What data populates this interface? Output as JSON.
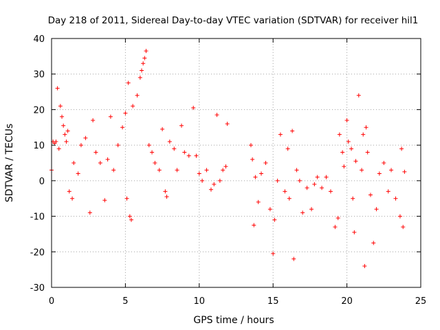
{
  "chart_data": {
    "type": "scatter",
    "title": "Day 218 of 2011, Sidereal Day-to-day VTEC variation (SDTVAR) for receiver hil1",
    "xlabel": "GPS time / hours",
    "ylabel": "SDTVAR / TECUs",
    "xlim": [
      0,
      25
    ],
    "ylim": [
      -30,
      40
    ],
    "xticks": [
      0,
      5,
      10,
      15,
      20,
      25
    ],
    "yticks": [
      -30,
      -20,
      -10,
      0,
      10,
      20,
      30,
      40
    ],
    "xtick_labels": [
      "0",
      "5",
      "10",
      "15",
      "20",
      "25"
    ],
    "ytick_labels": [
      "-30",
      "-20",
      "-10",
      "0",
      "10",
      "20",
      "30",
      "40"
    ],
    "grid": true,
    "marker": "+",
    "color": "#ff0000",
    "series": [
      {
        "name": "hil1",
        "points": [
          [
            0.0,
            3.0
          ],
          [
            0.1,
            11.0
          ],
          [
            0.2,
            10.5
          ],
          [
            0.3,
            11.0
          ],
          [
            0.4,
            26.0
          ],
          [
            0.5,
            9.0
          ],
          [
            0.6,
            21.0
          ],
          [
            0.7,
            18.0
          ],
          [
            0.8,
            15.5
          ],
          [
            0.9,
            13.0
          ],
          [
            1.0,
            11.0
          ],
          [
            1.1,
            14.0
          ],
          [
            1.2,
            -3.0
          ],
          [
            1.4,
            -5.0
          ],
          [
            1.5,
            5.0
          ],
          [
            1.8,
            2.0
          ],
          [
            2.0,
            10.0
          ],
          [
            2.3,
            12.0
          ],
          [
            2.6,
            -9.0
          ],
          [
            2.8,
            17.0
          ],
          [
            3.0,
            8.0
          ],
          [
            3.3,
            5.0
          ],
          [
            3.6,
            -5.5
          ],
          [
            3.8,
            6.0
          ],
          [
            4.0,
            18.0
          ],
          [
            4.2,
            3.0
          ],
          [
            4.5,
            10.0
          ],
          [
            4.8,
            15.0
          ],
          [
            5.0,
            19.0
          ],
          [
            5.1,
            -5.0
          ],
          [
            5.2,
            27.5
          ],
          [
            5.3,
            -10.0
          ],
          [
            5.4,
            -11.0
          ],
          [
            5.5,
            21.0
          ],
          [
            5.8,
            24.0
          ],
          [
            6.0,
            29.0
          ],
          [
            6.1,
            31.0
          ],
          [
            6.2,
            33.0
          ],
          [
            6.3,
            34.5
          ],
          [
            6.4,
            36.5
          ],
          [
            6.6,
            10.0
          ],
          [
            6.8,
            8.0
          ],
          [
            7.0,
            5.0
          ],
          [
            7.3,
            3.0
          ],
          [
            7.5,
            14.5
          ],
          [
            7.7,
            -3.0
          ],
          [
            7.8,
            -4.5
          ],
          [
            8.0,
            11.0
          ],
          [
            8.3,
            9.0
          ],
          [
            8.5,
            3.0
          ],
          [
            8.8,
            15.5
          ],
          [
            9.0,
            8.0
          ],
          [
            9.3,
            7.0
          ],
          [
            9.6,
            20.5
          ],
          [
            9.8,
            7.0
          ],
          [
            10.0,
            2.0
          ],
          [
            10.2,
            0.0
          ],
          [
            10.5,
            3.0
          ],
          [
            10.8,
            -2.5
          ],
          [
            11.0,
            -1.0
          ],
          [
            11.2,
            18.5
          ],
          [
            11.4,
            0.0
          ],
          [
            11.6,
            3.0
          ],
          [
            11.8,
            4.0
          ],
          [
            11.9,
            16.0
          ],
          [
            13.5,
            10.0
          ],
          [
            13.6,
            6.0
          ],
          [
            13.7,
            -12.5
          ],
          [
            13.8,
            1.0
          ],
          [
            14.0,
            -6.0
          ],
          [
            14.2,
            2.0
          ],
          [
            14.5,
            5.0
          ],
          [
            14.8,
            -8.0
          ],
          [
            15.0,
            -20.5
          ],
          [
            15.1,
            -11.0
          ],
          [
            15.3,
            0.0
          ],
          [
            15.5,
            13.0
          ],
          [
            15.8,
            -3.0
          ],
          [
            16.0,
            9.0
          ],
          [
            16.1,
            -5.0
          ],
          [
            16.3,
            14.0
          ],
          [
            16.4,
            -22.0
          ],
          [
            16.6,
            3.0
          ],
          [
            16.8,
            0.0
          ],
          [
            17.0,
            -9.0
          ],
          [
            17.3,
            -2.0
          ],
          [
            17.6,
            -8.0
          ],
          [
            17.8,
            -1.0
          ],
          [
            18.0,
            1.0
          ],
          [
            18.3,
            -2.0
          ],
          [
            18.6,
            1.0
          ],
          [
            18.9,
            -3.0
          ],
          [
            19.2,
            -13.0
          ],
          [
            19.4,
            -10.5
          ],
          [
            19.5,
            13.0
          ],
          [
            19.7,
            8.0
          ],
          [
            19.8,
            4.0
          ],
          [
            20.0,
            17.0
          ],
          [
            20.1,
            11.0
          ],
          [
            20.3,
            9.0
          ],
          [
            20.4,
            -5.0
          ],
          [
            20.5,
            -14.5
          ],
          [
            20.6,
            5.5
          ],
          [
            20.8,
            24.0
          ],
          [
            21.0,
            3.0
          ],
          [
            21.1,
            13.0
          ],
          [
            21.2,
            -24.0
          ],
          [
            21.3,
            15.0
          ],
          [
            21.4,
            8.0
          ],
          [
            21.6,
            -4.0
          ],
          [
            21.8,
            -17.5
          ],
          [
            22.0,
            -8.0
          ],
          [
            22.2,
            2.0
          ],
          [
            22.5,
            5.0
          ],
          [
            22.8,
            -3.0
          ],
          [
            23.0,
            3.0
          ],
          [
            23.3,
            -5.0
          ],
          [
            23.6,
            -10.0
          ],
          [
            23.7,
            9.0
          ],
          [
            23.8,
            -13.0
          ],
          [
            23.9,
            2.5
          ]
        ]
      }
    ]
  }
}
